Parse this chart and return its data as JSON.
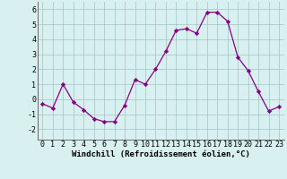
{
  "x": [
    0,
    1,
    2,
    3,
    4,
    5,
    6,
    7,
    8,
    9,
    10,
    11,
    12,
    13,
    14,
    15,
    16,
    17,
    18,
    19,
    20,
    21,
    22,
    23
  ],
  "y": [
    -0.3,
    -0.6,
    1.0,
    -0.2,
    -0.7,
    -1.3,
    -1.5,
    -1.5,
    -0.4,
    1.3,
    1.0,
    2.0,
    3.2,
    4.6,
    4.7,
    4.4,
    5.8,
    5.8,
    5.2,
    2.8,
    1.9,
    0.5,
    -0.8,
    -0.5
  ],
  "line_color": "#880088",
  "marker": "D",
  "marker_size": 2.2,
  "bg_color": "#d8f0f0",
  "grid_color": "#aacccc",
  "xlabel": "Windchill (Refroidissement éolien,°C)",
  "xlabel_fontsize": 6.5,
  "ylabel_ticks": [
    -2,
    -1,
    0,
    1,
    2,
    3,
    4,
    5,
    6
  ],
  "xlim": [
    -0.5,
    23.5
  ],
  "ylim": [
    -2.7,
    6.5
  ],
  "tick_fontsize": 6.0,
  "line_width": 0.9
}
